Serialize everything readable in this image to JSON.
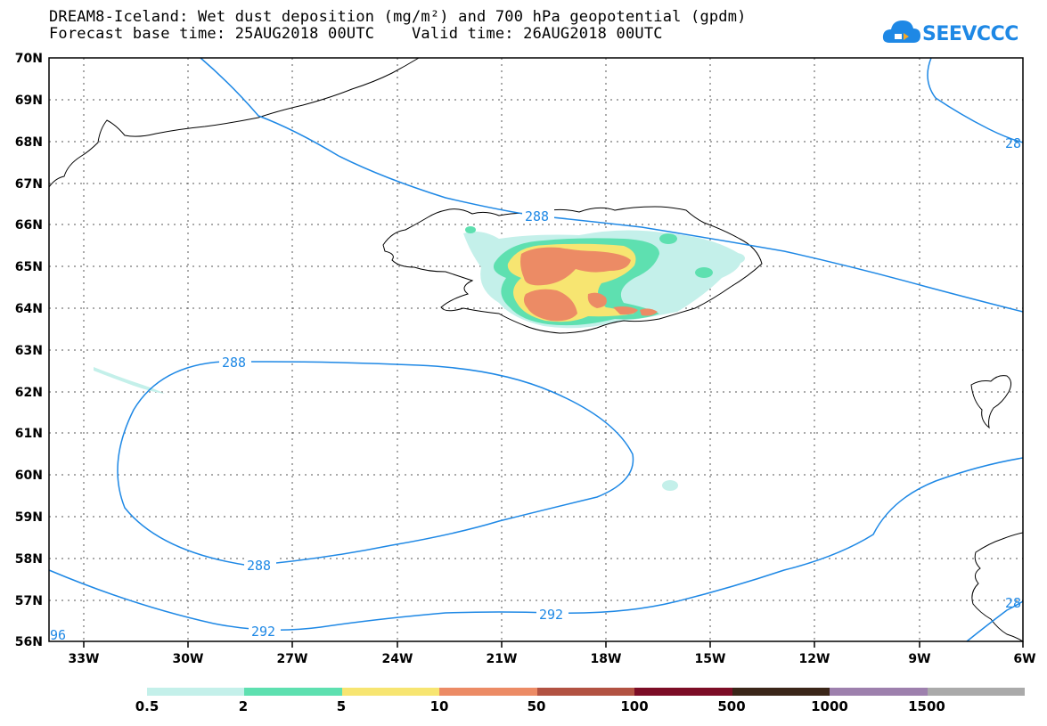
{
  "title": {
    "line1": "DREAM8-Iceland: Wet dust deposition (mg/m²) and 700 hPa geopotential (gpdm)",
    "line2": "Forecast base time: 25AUG2018 00UTC    Valid time: 26AUG2018 00UTC"
  },
  "logo": {
    "text": "SEEVCCC",
    "icon": "cloud-logo-icon"
  },
  "map": {
    "lon_labels": [
      "33W",
      "30W",
      "27W",
      "24W",
      "21W",
      "18W",
      "15W",
      "12W",
      "9W",
      "6W"
    ],
    "lat_labels": [
      "70N",
      "69N",
      "68N",
      "67N",
      "66N",
      "65N",
      "64N",
      "63N",
      "62N",
      "61N",
      "60N",
      "59N",
      "58N",
      "57N",
      "56N"
    ],
    "contour_labels": [
      "288",
      "288",
      "288",
      "292",
      "28",
      "96",
      "28"
    ],
    "contour_color": "#1e88e5"
  },
  "legend": {
    "labels": [
      "0.5",
      "2",
      "5",
      "10",
      "50",
      "100",
      "500",
      "1000",
      "1500"
    ],
    "colors": [
      "#c4f0ea",
      "#5ee0b0",
      "#f7e571",
      "#ec8b65",
      "#b25242",
      "#7c0d26",
      "#3b2619",
      "#9d80ad",
      "#aaaaaa"
    ]
  }
}
